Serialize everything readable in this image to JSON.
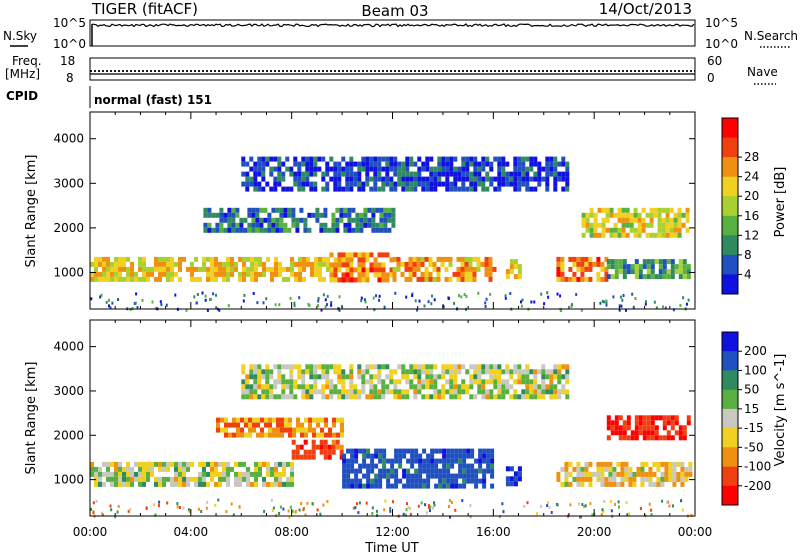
{
  "header": {
    "station": "TIGER (fitACF)",
    "beam": "Beam 03",
    "date": "14/Oct/2013"
  },
  "top_panels": {
    "nsky_label": "N.Sky",
    "nsky_ticks": [
      "10^5",
      "10^0"
    ],
    "nsearch_label": "N.Search",
    "freq_label": "Freq.",
    "freq_unit": "[MHz]",
    "freq_ticks": [
      "18",
      "8"
    ],
    "nave_ticks": [
      "60",
      "0"
    ],
    "nave_label": "Nave",
    "cpid_label": "CPID",
    "cpid_value": "normal (fast) 151"
  },
  "chart_data": [
    {
      "type": "heatmap",
      "quantity": "power",
      "ylabel": "Slant Range [km]",
      "ylim": [
        180,
        4600
      ],
      "yticks": [
        1000,
        2000,
        3000,
        4000
      ],
      "xlim_hours": [
        0,
        24
      ],
      "colorbar_label": "Power [dB]",
      "colorbar_ticks": [
        4,
        8,
        12,
        16,
        20,
        24,
        28
      ],
      "colorbar_colors": [
        "#1010e0",
        "#2050c0",
        "#2f8a60",
        "#57b040",
        "#a8d030",
        "#f0d020",
        "#f09010",
        "#f04010",
        "#ff0000"
      ],
      "bands": [
        {
          "t0": 0.0,
          "t1": 9.5,
          "r0": 850,
          "r1": 1350,
          "level": 22
        },
        {
          "t0": 9.5,
          "t1": 12.0,
          "r0": 800,
          "r1": 1450,
          "level": 27
        },
        {
          "t0": 12.0,
          "t1": 16.0,
          "r0": 900,
          "r1": 1350,
          "level": 25
        },
        {
          "t0": 16.5,
          "t1": 17.0,
          "r0": 950,
          "r1": 1300,
          "level": 22
        },
        {
          "t0": 18.5,
          "t1": 20.5,
          "r0": 850,
          "r1": 1350,
          "level": 27
        },
        {
          "t0": 20.5,
          "t1": 23.8,
          "r0": 900,
          "r1": 1300,
          "level": 12
        },
        {
          "t0": 4.5,
          "t1": 12.0,
          "r0": 1950,
          "r1": 2450,
          "level": 8
        },
        {
          "t0": 19.5,
          "t1": 23.7,
          "r0": 1850,
          "r1": 2450,
          "level": 20
        },
        {
          "t0": 6.0,
          "t1": 19.0,
          "r0": 2900,
          "r1": 3600,
          "level": 5
        }
      ]
    },
    {
      "type": "heatmap",
      "quantity": "velocity",
      "xlabel": "Time UT",
      "ylabel": "Slant Range [km]",
      "ylim": [
        180,
        4600
      ],
      "yticks": [
        1000,
        2000,
        3000,
        4000
      ],
      "xlim_hours": [
        0,
        24
      ],
      "xticks": [
        "00:00",
        "04:00",
        "08:00",
        "12:00",
        "16:00",
        "20:00",
        "00:00"
      ],
      "colorbar_label": "Velocity [m s^-1]",
      "colorbar_ticks": [
        200,
        100,
        50,
        15,
        -15,
        -50,
        -100,
        -200
      ],
      "colorbar_colors": [
        "#1010e0",
        "#2050c0",
        "#2f8a60",
        "#57b040",
        "#c8c8c0",
        "#f0d020",
        "#f09010",
        "#f04010",
        "#ff0000"
      ],
      "bands": [
        {
          "t0": 0.0,
          "t1": 8.0,
          "r0": 850,
          "r1": 1400,
          "value": 0
        },
        {
          "t0": 8.0,
          "t1": 10.0,
          "r0": 1450,
          "r1": 1900,
          "value": -150
        },
        {
          "t0": 10.0,
          "t1": 16.0,
          "r0": 850,
          "r1": 1700,
          "value": 150
        },
        {
          "t0": 16.5,
          "t1": 17.0,
          "r0": 950,
          "r1": 1300,
          "value": 200
        },
        {
          "t0": 18.5,
          "t1": 23.8,
          "r0": 850,
          "r1": 1400,
          "value": -40
        },
        {
          "t0": 20.5,
          "t1": 23.8,
          "r0": 1900,
          "r1": 2450,
          "value": -200
        },
        {
          "t0": 5.0,
          "t1": 10.0,
          "r0": 2000,
          "r1": 2400,
          "value": -80
        },
        {
          "t0": 6.0,
          "t1": 19.0,
          "r0": 2900,
          "r1": 3600,
          "value": 0
        }
      ]
    }
  ]
}
